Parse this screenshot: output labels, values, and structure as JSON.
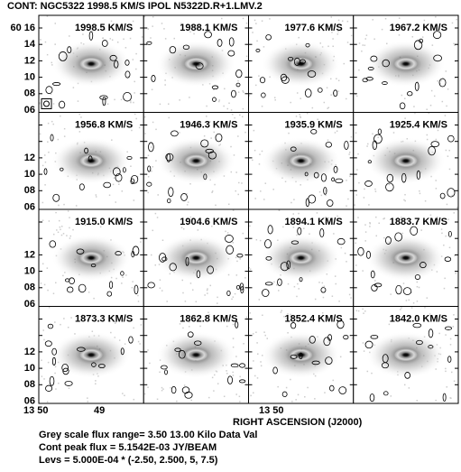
{
  "header": {
    "title": "CONT: NGC5322  1998.5 KM/S  IPOL  N5322D.R+1.LMV.2"
  },
  "panels": [
    "1998.5 KM/S",
    "1988.1 KM/S",
    "1977.6 KM/S",
    "1967.2 KM/S",
    "1956.8 KM/S",
    "1946.3 KM/S",
    "1935.9 KM/S",
    "1925.4 KM/S",
    "1915.0 KM/S",
    "1904.6 KM/S",
    "1894.1 KM/S",
    "1883.7 KM/S",
    "1873.3 KM/S",
    "1862.8 KM/S",
    "1852.4 KM/S",
    "1842.0 KM/S"
  ],
  "y_axis": {
    "labels": [
      "60 16",
      "14",
      "12",
      "10",
      "08",
      "06"
    ]
  },
  "x_axis": {
    "labels": [
      "13 50",
      "49"
    ],
    "title": "RIGHT ASCENSION (J2000)"
  },
  "footer": {
    "lines": [
      "Grey scale flux range= 3.50 13.00 Kilo Data Val",
      "Cont peak flux =  5.1542E-03 JY/BEAM",
      "Levs = 5.000E-04 * (-2.50, 2.500, 5, 7.5)"
    ]
  }
}
